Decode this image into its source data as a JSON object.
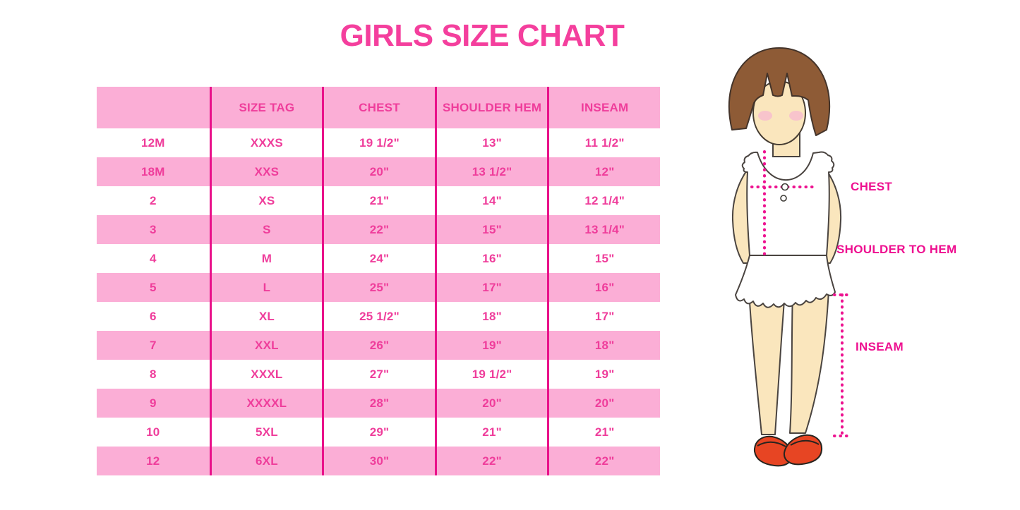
{
  "title": "GIRLS SIZE CHART",
  "chart_data": {
    "type": "table",
    "title": "GIRLS SIZE CHART",
    "columns": [
      "",
      "SIZE TAG",
      "CHEST",
      "SHOULDER HEM",
      "INSEAM"
    ],
    "rows": [
      [
        "12M",
        "XXXS",
        "19 1/2\"",
        "13\"",
        "11 1/2\""
      ],
      [
        "18M",
        "XXS",
        "20\"",
        "13 1/2\"",
        "12\""
      ],
      [
        "2",
        "XS",
        "21\"",
        "14\"",
        "12 1/4\""
      ],
      [
        "3",
        "S",
        "22\"",
        "15\"",
        "13 1/4\""
      ],
      [
        "4",
        "M",
        "24\"",
        "16\"",
        "15\""
      ],
      [
        "5",
        "L",
        "25\"",
        "17\"",
        "16\""
      ],
      [
        "6",
        "XL",
        "25 1/2\"",
        "18\"",
        "17\""
      ],
      [
        "7",
        "XXL",
        "26\"",
        "19\"",
        "18\""
      ],
      [
        "8",
        "XXXL",
        "27\"",
        "19 1/2\"",
        "19\""
      ],
      [
        "9",
        "XXXXL",
        "28\"",
        "20\"",
        "20\""
      ],
      [
        "10",
        "5XL",
        "29\"",
        "21\"",
        "21\""
      ],
      [
        "12",
        "6XL",
        "30\"",
        "22\"",
        "22\""
      ]
    ]
  },
  "diagram": {
    "chest_label": "CHEST",
    "shoulder_to_hem_label": "SHOULDER TO HEM",
    "inseam_label": "INSEAM"
  },
  "colors": {
    "title_pink": "#F43F9D",
    "row_pink": "#FBAED6",
    "divider_magenta": "#E9118A",
    "table_text_pink": "#EF3D9B",
    "label_magenta": "#EE1090",
    "dotted_line_magenta": "#ED1390",
    "hair_brown": "#8E5B36",
    "skin_cream": "#FAE6BD",
    "blush_pink": "#F8C4CC",
    "shoe_red": "#E74523"
  }
}
